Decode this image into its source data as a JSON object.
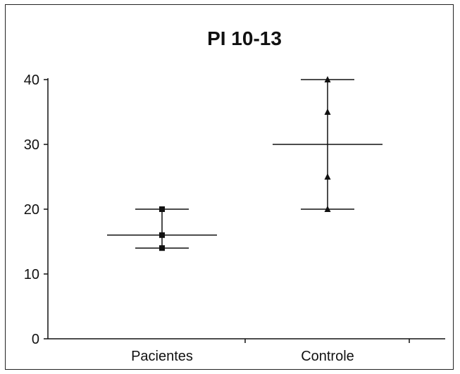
{
  "chart_data": {
    "type": "scatter",
    "title": "PI 10-13",
    "xlabel": "",
    "ylabel": "",
    "categories": [
      "Pacientes",
      "Controle"
    ],
    "ylim": [
      0,
      40
    ],
    "yticks": [
      0,
      10,
      20,
      30,
      40
    ],
    "grid": false,
    "legend": "none",
    "series": [
      {
        "category": "Pacientes",
        "marker": "square",
        "points": [
          20,
          16,
          14
        ],
        "mean": 16,
        "range": [
          14,
          20
        ]
      },
      {
        "category": "Controle",
        "marker": "triangle",
        "points": [
          40,
          35,
          25,
          20
        ],
        "mean": 30,
        "range": [
          20,
          40
        ]
      }
    ],
    "colors": {
      "ink": "#111111",
      "background": "#ffffff"
    }
  }
}
